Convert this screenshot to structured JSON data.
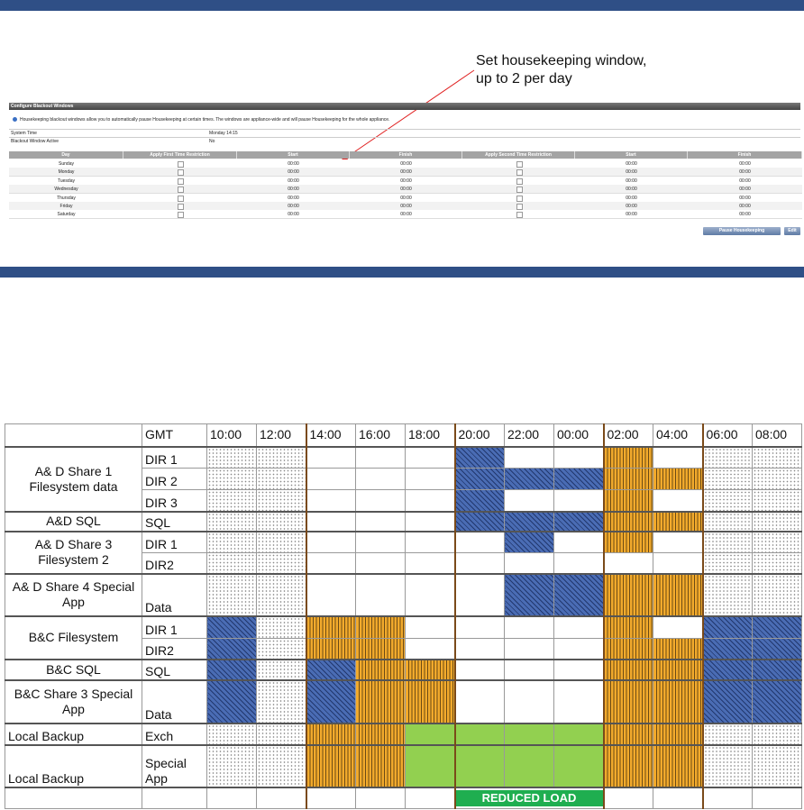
{
  "annotation": [
    "Set housekeeping window,",
    "up to 2 per day"
  ],
  "panel": {
    "title": "Configure Blackout Windows",
    "info": "Housekeeping blackout windows allow you to automatically pause Housekeeping at certain times. The windows are appliance-wide and will pause Housekeeping for the whole appliance.",
    "status": [
      [
        "System Time",
        "Monday 14:15"
      ],
      [
        "Blackout Window Active",
        "No"
      ]
    ],
    "columns": [
      "Day",
      "Apply First Time Restriction",
      "Start",
      "Finish",
      "Apply Second Time Restriction",
      "Start",
      "Finish"
    ],
    "rows": [
      {
        "day": "Sunday",
        "start1": "00:00",
        "finish1": "00:00",
        "start2": "00:00",
        "finish2": "00:00"
      },
      {
        "day": "Monday",
        "start1": "00:00",
        "finish1": "00:00",
        "start2": "00:00",
        "finish2": "00:00"
      },
      {
        "day": "Tuesday",
        "start1": "00:00",
        "finish1": "00:00",
        "start2": "00:00",
        "finish2": "00:00"
      },
      {
        "day": "Wednesday",
        "start1": "00:00",
        "finish1": "00:00",
        "start2": "00:00",
        "finish2": "00:00"
      },
      {
        "day": "Thursday",
        "start1": "00:00",
        "finish1": "00:00",
        "start2": "00:00",
        "finish2": "00:00"
      },
      {
        "day": "Friday",
        "start1": "00:00",
        "finish1": "00:00",
        "start2": "00:00",
        "finish2": "00:00"
      },
      {
        "day": "Saturday",
        "start1": "00:00",
        "finish1": "00:00",
        "start2": "00:00",
        "finish2": "00:00"
      }
    ],
    "buttons": [
      "Pause Housekeeping",
      "Edit"
    ]
  },
  "schedule": {
    "gmt": "GMT",
    "times": [
      "10:00",
      "12:00",
      "14:00",
      "16:00",
      "18:00",
      "20:00",
      "22:00",
      "00:00",
      "02:00",
      "04:00",
      "06:00",
      "08:00"
    ],
    "groups": [
      {
        "label": "A& D Share 1 Filesystem data",
        "rows": [
          "DIR 1",
          "DIR 2",
          "DIR 3"
        ]
      },
      {
        "label": "A&D SQL",
        "rows": [
          "SQL"
        ]
      },
      {
        "label": "A& D Share 3 Filesystem 2",
        "rows": [
          "DIR 1",
          "DIR2"
        ]
      },
      {
        "label": "A& D Share 4 Special App",
        "rows": [
          "Data"
        ]
      },
      {
        "label": "B&C Filesystem",
        "rows": [
          "DIR 1",
          "DIR2"
        ]
      },
      {
        "label": "B&C SQL",
        "rows": [
          "SQL"
        ]
      },
      {
        "label": "B&C Share 3 Special App",
        "rows": [
          "Data"
        ]
      },
      {
        "label": "Local Backup",
        "rows": [
          "Exch"
        ]
      },
      {
        "label": "Local Backup",
        "rows": [
          "Special App"
        ]
      }
    ],
    "footer": "REDUCED LOAD"
  }
}
